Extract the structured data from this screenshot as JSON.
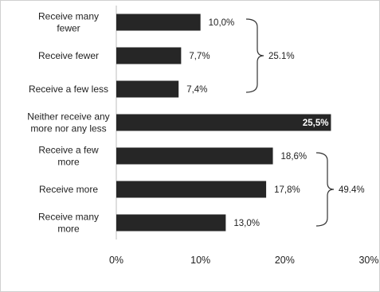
{
  "chart_data": {
    "type": "bar",
    "orientation": "horizontal",
    "categories": [
      [
        "Receive many",
        "fewer"
      ],
      [
        "Receive fewer"
      ],
      [
        "Receive a few less"
      ],
      [
        "Neither receive any",
        "more nor any less"
      ],
      [
        "Receive a few",
        "more"
      ],
      [
        "Receive more"
      ],
      [
        "Receive many",
        "more"
      ]
    ],
    "values": [
      10.0,
      7.7,
      7.4,
      25.5,
      18.6,
      17.8,
      13.0
    ],
    "value_labels": [
      "10,0%",
      "7,7%",
      "7,4%",
      "25,5%",
      "18,6%",
      "17,8%",
      "13,0%"
    ],
    "xlim": [
      0,
      30
    ],
    "xticks": [
      0,
      10,
      20,
      30
    ],
    "xtick_labels": [
      "0%",
      "10%",
      "20%",
      "30%"
    ],
    "bar_color": "#262626",
    "grid": false,
    "groups": [
      {
        "label": "25.1%",
        "from": 0,
        "to": 2
      },
      {
        "label": "49.4%",
        "from": 4,
        "to": 6
      }
    ]
  }
}
